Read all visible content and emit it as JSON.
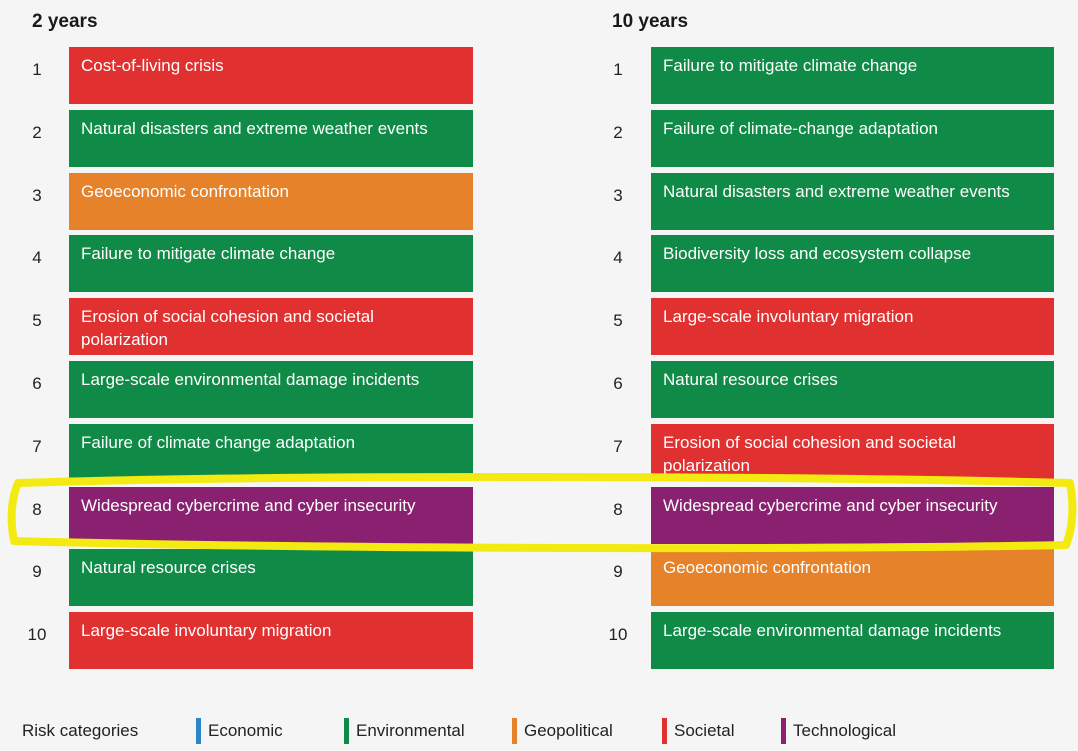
{
  "chart_data": {
    "type": "table",
    "columns": [
      {
        "title": "2 years",
        "items": [
          {
            "rank": "1",
            "label": "Cost-of-living crisis",
            "category": "Societal"
          },
          {
            "rank": "2",
            "label": "Natural disasters and extreme weather events",
            "category": "Environmental"
          },
          {
            "rank": "3",
            "label": "Geoeconomic confrontation",
            "category": "Geopolitical"
          },
          {
            "rank": "4",
            "label": "Failure to mitigate climate change",
            "category": "Environmental"
          },
          {
            "rank": "5",
            "label": "Erosion of social cohesion and societal polarization",
            "category": "Societal"
          },
          {
            "rank": "6",
            "label": "Large-scale environmental damage incidents",
            "category": "Environmental"
          },
          {
            "rank": "7",
            "label": "Failure of climate change adaptation",
            "category": "Environmental"
          },
          {
            "rank": "8",
            "label": "Widespread cybercrime and cyber insecurity",
            "category": "Technological"
          },
          {
            "rank": "9",
            "label": "Natural resource crises",
            "category": "Environmental"
          },
          {
            "rank": "10",
            "label": "Large-scale involuntary migration",
            "category": "Societal"
          }
        ]
      },
      {
        "title": "10 years",
        "items": [
          {
            "rank": "1",
            "label": "Failure to mitigate climate change",
            "category": "Environmental"
          },
          {
            "rank": "2",
            "label": "Failure of climate-change adaptation",
            "category": "Environmental"
          },
          {
            "rank": "3",
            "label": "Natural disasters and extreme weather events",
            "category": "Environmental"
          },
          {
            "rank": "4",
            "label": "Biodiversity loss and ecosystem collapse",
            "category": "Environmental"
          },
          {
            "rank": "5",
            "label": "Large-scale involuntary migration",
            "category": "Societal"
          },
          {
            "rank": "6",
            "label": "Natural resource crises",
            "category": "Environmental"
          },
          {
            "rank": "7",
            "label": "Erosion of social cohesion and societal polarization",
            "category": "Societal"
          },
          {
            "rank": "8",
            "label": "Widespread cybercrime and cyber insecurity",
            "category": "Technological"
          },
          {
            "rank": "9",
            "label": "Geoeconomic confrontation",
            "category": "Geopolitical"
          },
          {
            "rank": "10",
            "label": "Large-scale environmental damage incidents",
            "category": "Environmental"
          }
        ]
      }
    ],
    "highlighted_rank": "8",
    "highlight_color": "#f3ea12",
    "legend": {
      "title": "Risk categories",
      "categories": [
        {
          "name": "Economic",
          "color": "#2a86c7"
        },
        {
          "name": "Environmental",
          "color": "#0f8a47"
        },
        {
          "name": "Geopolitical",
          "color": "#e5822a"
        },
        {
          "name": "Societal",
          "color": "#e03030"
        },
        {
          "name": "Technological",
          "color": "#8a2170"
        }
      ]
    }
  }
}
